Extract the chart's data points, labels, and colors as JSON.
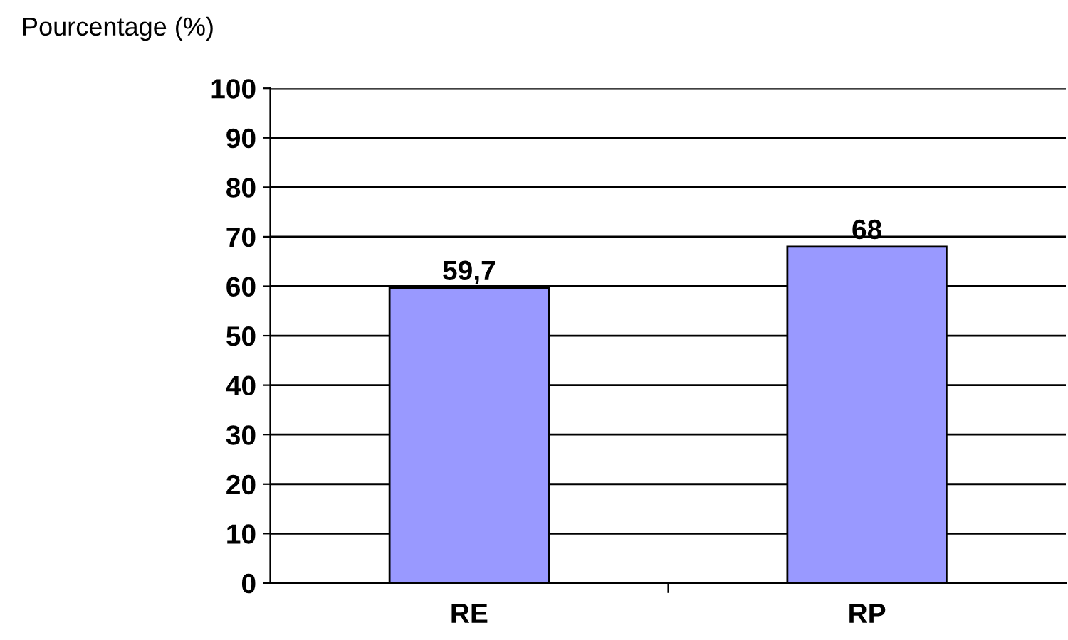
{
  "chart_data": {
    "type": "bar",
    "ylabel": "Pourcentage (%)",
    "categories": [
      "RE",
      "RP"
    ],
    "values": [
      59.7,
      68
    ],
    "value_labels": [
      "59,7",
      "68"
    ],
    "color": "#9999ff",
    "ylim": [
      0,
      100
    ],
    "yticks": [
      0,
      10,
      20,
      30,
      40,
      50,
      60,
      70,
      80,
      90,
      100
    ],
    "grid": "y"
  }
}
